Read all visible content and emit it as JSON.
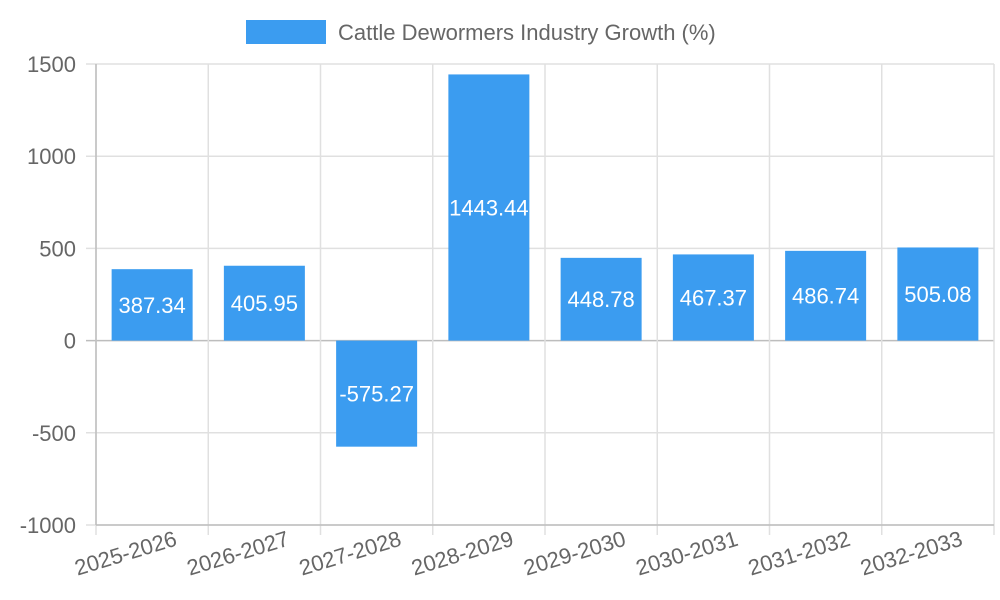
{
  "chart_data": {
    "type": "bar",
    "categories": [
      "2025-2026",
      "2026-2027",
      "2027-2028",
      "2028-2029",
      "2029-2030",
      "2030-2031",
      "2031-2032",
      "2032-2033"
    ],
    "series": [
      {
        "name": "Cattle Dewormers Industry Growth (%)",
        "values": [
          387.34,
          405.95,
          -575.27,
          1443.44,
          448.78,
          467.37,
          486.74,
          505.08
        ],
        "color": "#3b9cf0"
      }
    ],
    "data_labels": [
      "387.34",
      "405.95",
      "-575.27",
      "1443.44",
      "448.78",
      "467.37",
      "486.74",
      "505.08"
    ],
    "ylim": [
      -1000,
      1500
    ],
    "yticks": [
      1500,
      1000,
      500,
      0,
      -500,
      -1000
    ],
    "grid": true,
    "legend": "top-center"
  }
}
